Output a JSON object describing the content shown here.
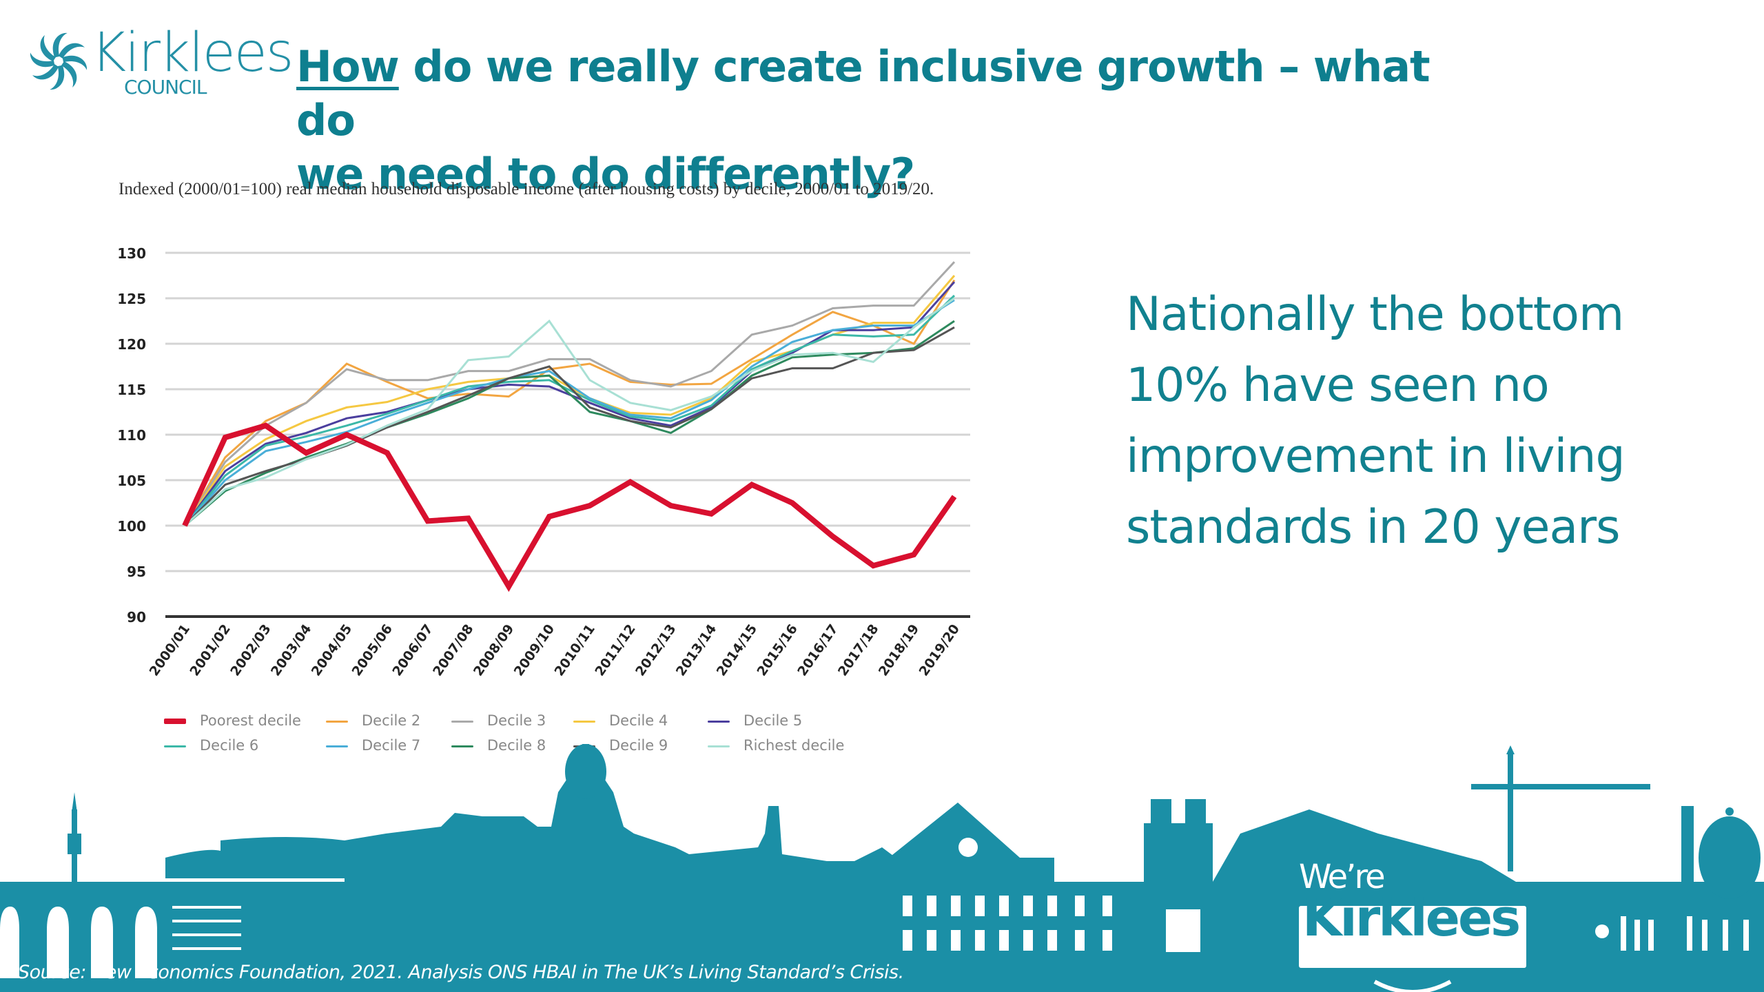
{
  "logo": {
    "name": "Kirklees",
    "subtitle": "COUNCIL"
  },
  "title": {
    "underlined": "How",
    "rest_line1": " do we really create inclusive growth – what do",
    "line2": "we need to do differently?"
  },
  "side_text": {
    "lines": [
      "Nationally the bottom",
      "10% have seen no",
      "improvement in living",
      "standards in 20 years"
    ]
  },
  "footer": {
    "source": "Source: New Economics Foundation, 2021. Analysis ONS HBAI in The UK’s Living Standard’s Crisis.",
    "badge_line1": "We’re",
    "badge_line2": "Kirklees"
  },
  "colors": {
    "brand": "#0e7f8f",
    "skyline": "#1b8fa6"
  },
  "chart_data": {
    "type": "line",
    "title": "Indexed (2000/01=100) real median household disposable income (after housing costs) by decile, 2000/01 to 2019/20.",
    "xlabel": "",
    "ylabel": "",
    "ylim": [
      90,
      130
    ],
    "yticks": [
      90,
      95,
      100,
      105,
      110,
      115,
      120,
      125,
      130
    ],
    "grid": true,
    "legend_position": "bottom",
    "categories": [
      "2000/01",
      "2001/02",
      "2002/03",
      "2003/04",
      "2004/05",
      "2005/06",
      "2006/07",
      "2007/08",
      "2008/09",
      "2009/10",
      "2010/11",
      "2011/12",
      "2012/13",
      "2013/14",
      "2014/15",
      "2015/16",
      "2016/17",
      "2017/18",
      "2018/19",
      "2019/20"
    ],
    "series": [
      {
        "name": "Poorest decile",
        "color": "#d8102f",
        "values": [
          100,
          109.7,
          111.0,
          108.0,
          110.0,
          108.0,
          100.5,
          100.8,
          93.3,
          101.0,
          102.2,
          104.8,
          102.2,
          101.3,
          104.5,
          102.5,
          98.8,
          95.6,
          96.8,
          103.2
        ]
      },
      {
        "name": "Decile 2",
        "color": "#f2a541",
        "values": [
          100,
          107.5,
          111.5,
          113.5,
          117.8,
          115.8,
          114.0,
          114.5,
          114.2,
          117.2,
          117.8,
          115.8,
          115.5,
          115.6,
          118.3,
          121.0,
          123.5,
          122.0,
          120.0,
          127.0
        ]
      },
      {
        "name": "Decile 3",
        "color": "#a9a9a9",
        "values": [
          100,
          107.0,
          111.0,
          113.5,
          117.2,
          116.0,
          116.0,
          117.0,
          117.0,
          118.3,
          118.3,
          116.0,
          115.3,
          117.0,
          121.0,
          122.0,
          123.9,
          124.2,
          124.2,
          129.0
        ]
      },
      {
        "name": "Decile 4",
        "color": "#f5c842",
        "values": [
          100,
          106.5,
          109.5,
          111.5,
          113.0,
          113.6,
          115.0,
          115.8,
          116.2,
          116.5,
          114.0,
          112.4,
          112.2,
          114.0,
          118.0,
          119.2,
          121.0,
          122.3,
          122.3,
          127.5
        ]
      },
      {
        "name": "Decile 5",
        "color": "#4b3f9e",
        "values": [
          100,
          106.0,
          109.0,
          110.2,
          111.8,
          112.5,
          113.8,
          115.0,
          115.5,
          115.3,
          113.5,
          111.8,
          111.0,
          113.0,
          117.0,
          119.0,
          121.5,
          121.5,
          121.8,
          126.8
        ]
      },
      {
        "name": "Decile 6",
        "color": "#3cb8a8",
        "values": [
          100,
          105.5,
          108.8,
          109.8,
          111.0,
          112.3,
          113.8,
          115.3,
          115.8,
          116.0,
          113.8,
          112.0,
          111.5,
          113.2,
          117.2,
          119.2,
          121.0,
          120.8,
          121.0,
          125.3
        ]
      },
      {
        "name": "Decile 7",
        "color": "#4aaed8",
        "values": [
          100,
          105.0,
          108.2,
          109.2,
          110.3,
          112.0,
          113.5,
          115.0,
          116.2,
          117.0,
          114.0,
          112.2,
          111.8,
          113.8,
          117.5,
          120.2,
          121.5,
          122.0,
          122.0,
          124.8
        ]
      },
      {
        "name": "Decile 8",
        "color": "#2e8a5e",
        "values": [
          100,
          103.8,
          105.8,
          107.5,
          109.0,
          110.8,
          112.3,
          114.0,
          116.2,
          116.5,
          112.5,
          111.5,
          110.2,
          112.8,
          116.5,
          118.5,
          118.8,
          119.0,
          119.5,
          122.5
        ]
      },
      {
        "name": "Decile 9",
        "color": "#555555",
        "values": [
          100,
          104.5,
          106.0,
          107.3,
          108.8,
          110.8,
          112.5,
          114.3,
          116.2,
          117.5,
          113.0,
          111.5,
          110.8,
          112.8,
          116.2,
          117.3,
          117.3,
          119.0,
          119.3,
          121.8
        ]
      },
      {
        "name": "Richest decile",
        "color": "#a8e0d4",
        "values": [
          100,
          104.0,
          105.3,
          107.3,
          108.9,
          111.0,
          112.8,
          118.2,
          118.6,
          122.5,
          116.0,
          113.5,
          112.7,
          114.2,
          117.0,
          118.8,
          119.0,
          118.0,
          121.8,
          125.0
        ]
      }
    ]
  }
}
